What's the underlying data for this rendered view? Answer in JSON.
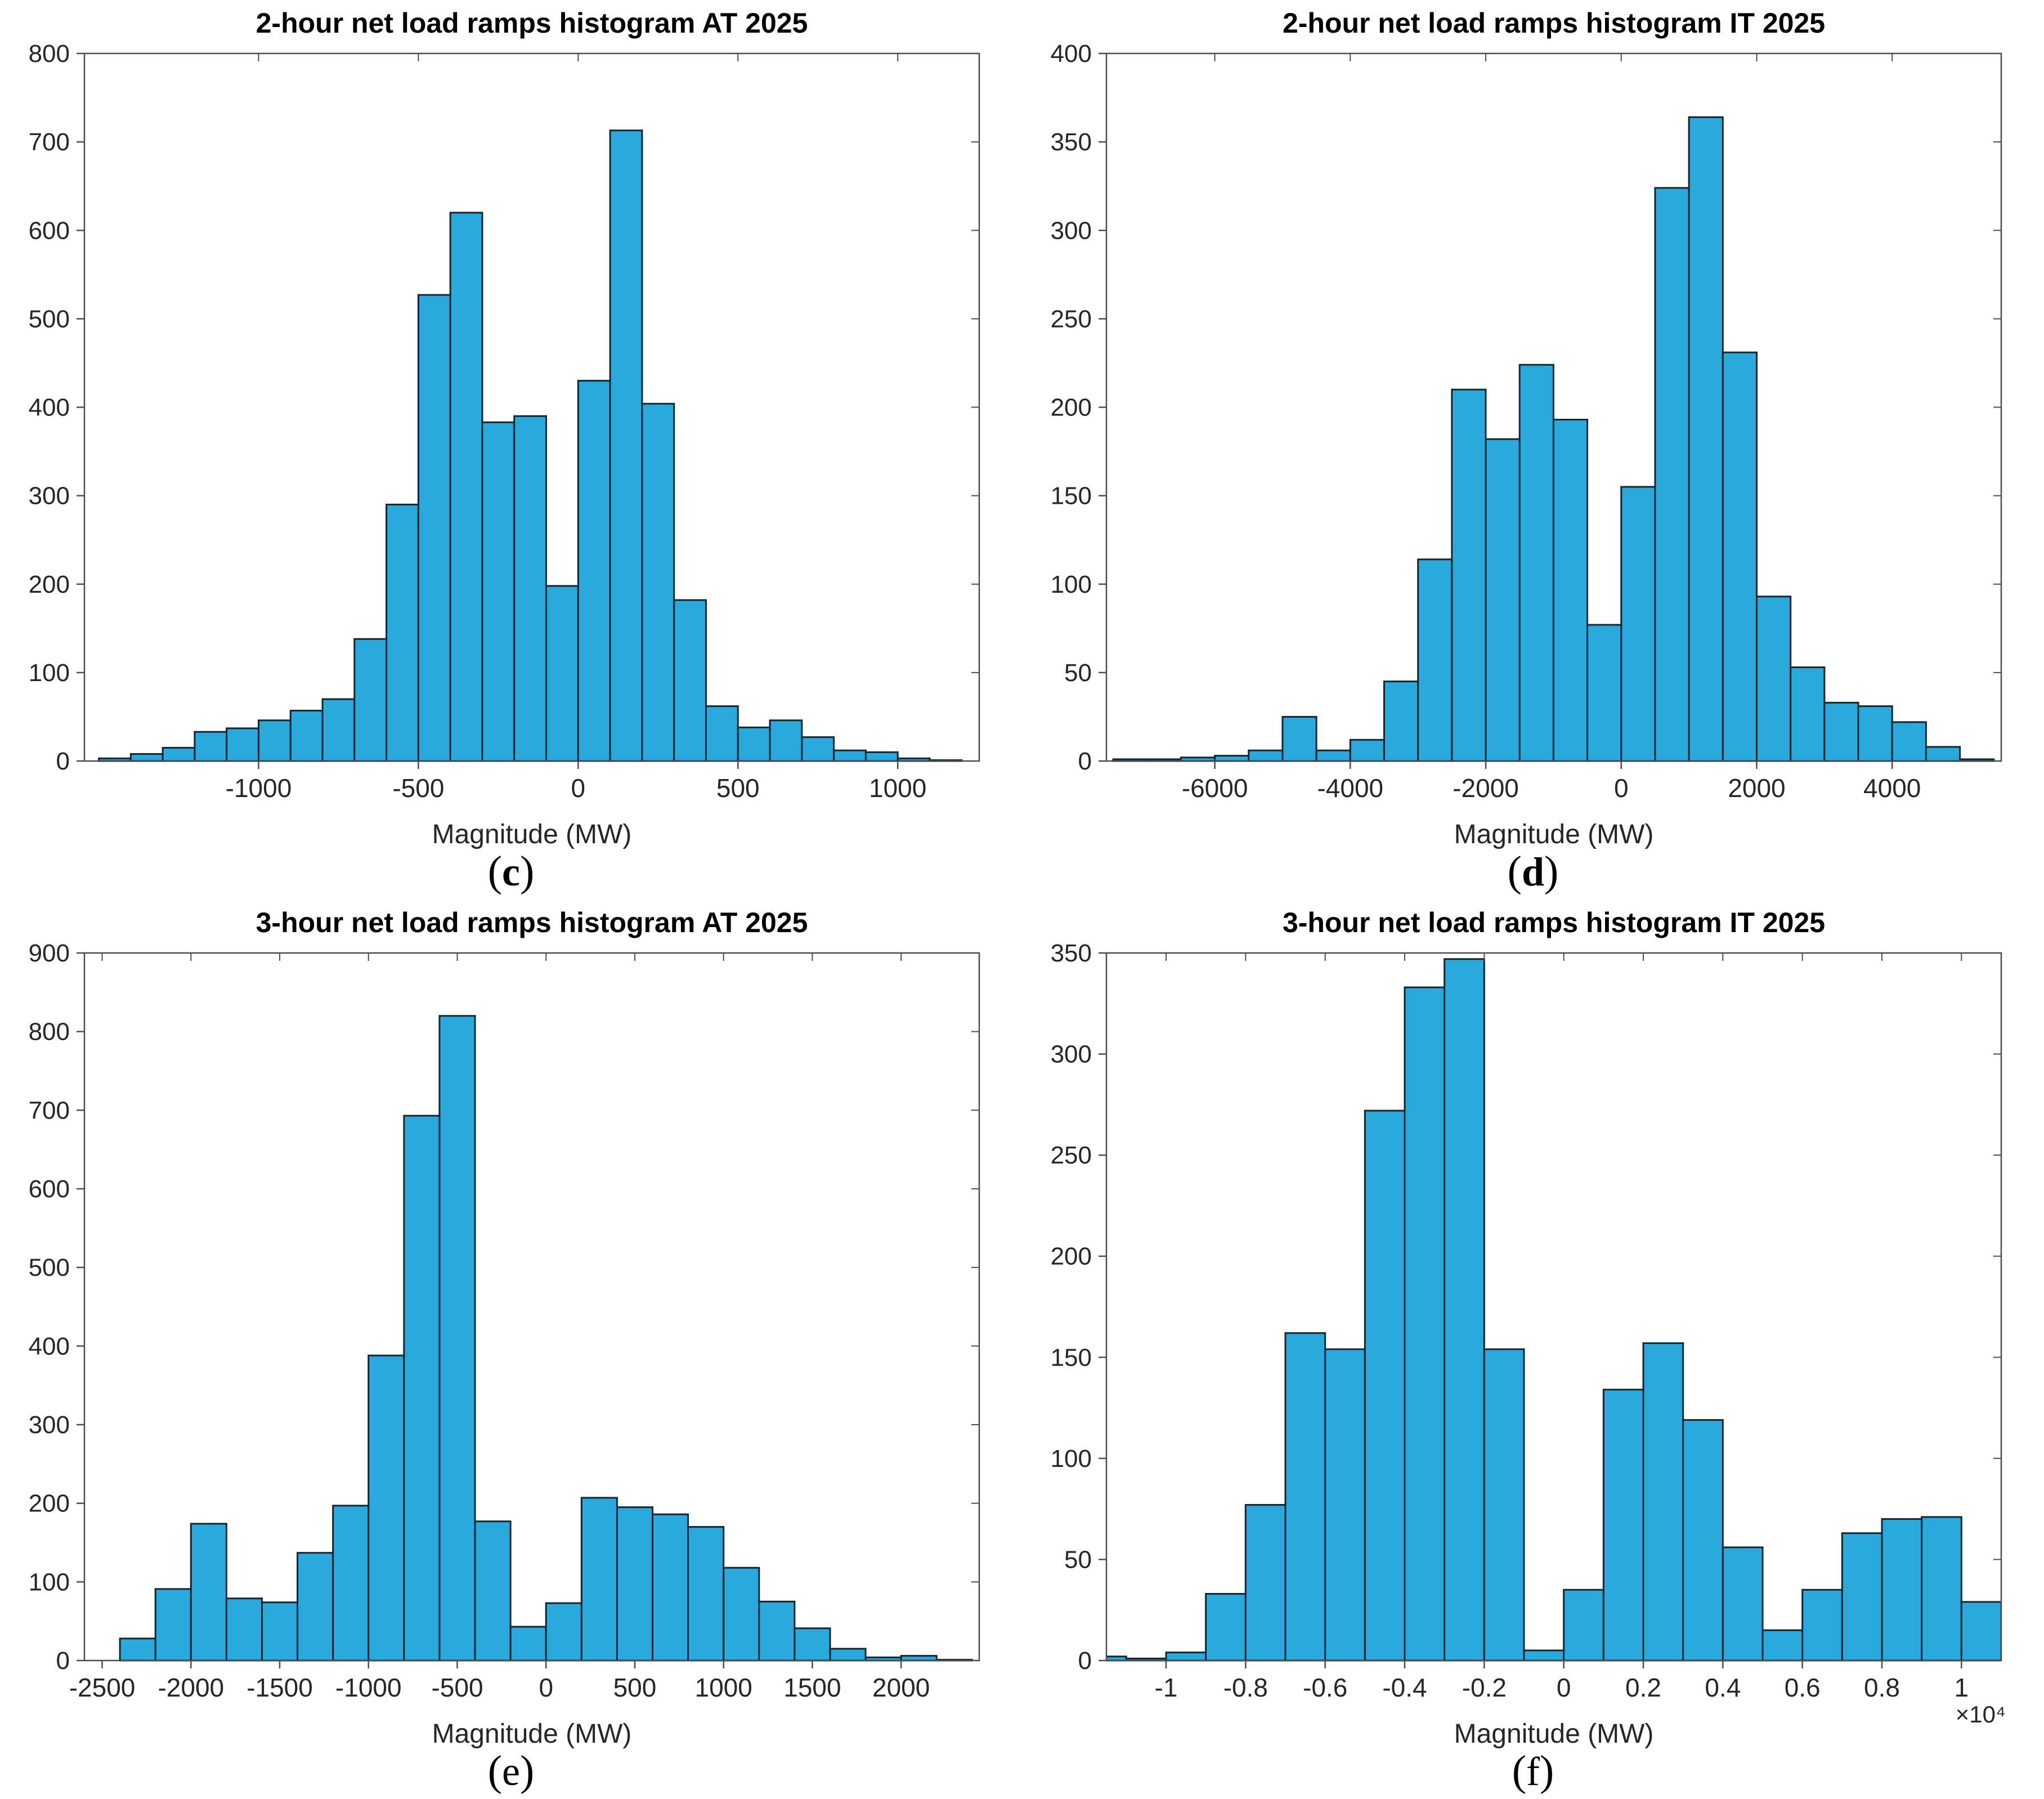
{
  "page": {
    "background": "#ffffff"
  },
  "style": {
    "bar_fill": "#29A9DC",
    "bar_edge": "#102632",
    "axis_color": "#4d4d4d",
    "tick_label_color": "#262626",
    "title_color": "#000000"
  },
  "figure_grid": {
    "panels": [
      {
        "id": "c",
        "caption_prefix": "(",
        "caption_letter": "c",
        "caption_suffix": ")"
      },
      {
        "id": "d",
        "caption_prefix": "(",
        "caption_letter": "d",
        "caption_suffix": ")"
      },
      {
        "id": "e",
        "caption_prefix": "(",
        "caption_letter": "e",
        "caption_suffix": ")"
      },
      {
        "id": "f",
        "caption_prefix": "(",
        "caption_letter": "f",
        "caption_suffix": ")"
      }
    ]
  },
  "chart_data": [
    {
      "type": "bar",
      "panel": "c",
      "title": "2-hour net load ramps histogram AT 2025",
      "xlabel": "Magnitude (MW)",
      "ylabel": "",
      "legend": null,
      "grid": false,
      "bin_start": -1500,
      "bin_width": 100,
      "values": [
        3,
        8,
        15,
        33,
        37,
        46,
        57,
        70,
        138,
        290,
        527,
        620,
        383,
        390,
        198,
        430,
        713,
        404,
        182,
        62,
        38,
        46,
        27,
        12,
        10,
        3,
        1
      ],
      "xlim": [
        -1545,
        1255
      ],
      "ylim": [
        0,
        800
      ],
      "ytick_step": 100,
      "yticks": [
        0,
        100,
        200,
        300,
        400,
        500,
        600,
        700,
        800
      ],
      "xticks": {
        "values": [
          -1000,
          -500,
          0,
          500,
          1000
        ],
        "labels": [
          "-1000",
          "-500",
          "0",
          "500",
          "1000"
        ]
      },
      "x_multiplier": null
    },
    {
      "type": "bar",
      "panel": "d",
      "title": "2-hour net load ramps histogram IT 2025",
      "xlabel": "Magnitude (MW)",
      "ylabel": "",
      "legend": null,
      "grid": false,
      "bin_start": -7500,
      "bin_width": 500,
      "values": [
        1,
        1,
        2,
        3,
        6,
        25,
        6,
        12,
        45,
        114,
        210,
        182,
        224,
        193,
        77,
        155,
        324,
        364,
        231,
        93,
        53,
        33,
        31,
        22,
        8,
        1
      ],
      "xlim": [
        -7600,
        5610
      ],
      "ylim": [
        0,
        400
      ],
      "ytick_step": 50,
      "yticks": [
        0,
        50,
        100,
        150,
        200,
        250,
        300,
        350,
        400
      ],
      "xticks": {
        "values": [
          -6000,
          -4000,
          -2000,
          0,
          2000,
          4000
        ],
        "labels": [
          "-6000",
          "-4000",
          "-2000",
          "0",
          "2000",
          "4000"
        ]
      },
      "x_multiplier": null
    },
    {
      "type": "bar",
      "panel": "e",
      "title": "3-hour net load ramps histogram AT 2025",
      "xlabel": "Magnitude (MW)",
      "ylabel": "",
      "legend": null,
      "grid": false,
      "bin_start": -2400,
      "bin_width": 200,
      "values": [
        28,
        91,
        174,
        79,
        74,
        137,
        197,
        388,
        693,
        820,
        177,
        43,
        73,
        207,
        195,
        186,
        170,
        118,
        75,
        41,
        15,
        4,
        6,
        1
      ],
      "xlim": [
        -2600,
        2440
      ],
      "ylim": [
        0,
        900
      ],
      "ytick_step": 100,
      "yticks": [
        0,
        100,
        200,
        300,
        400,
        500,
        600,
        700,
        800,
        900
      ],
      "xticks": {
        "values": [
          -2500,
          -2000,
          -1500,
          -1000,
          -500,
          0,
          500,
          1000,
          1500,
          2000
        ],
        "labels": [
          "-2500",
          "-2000",
          "-1500",
          "-1000",
          "-500",
          "0",
          "500",
          "1000",
          "1500",
          "2000"
        ]
      },
      "x_multiplier": null
    },
    {
      "type": "bar",
      "panel": "f",
      "title": "3-hour net load ramps histogram IT 2025",
      "xlabel": "Magnitude (MW)",
      "ylabel": "",
      "legend": null,
      "grid": false,
      "bin_start": -12000,
      "bin_width": 1000,
      "values": [
        2,
        1,
        4,
        33,
        77,
        162,
        154,
        272,
        333,
        347,
        154,
        5,
        35,
        134,
        157,
        119,
        56,
        15,
        35,
        63,
        70,
        71,
        29
      ],
      "xlim": [
        -11500,
        11000
      ],
      "ylim": [
        0,
        350
      ],
      "ytick_step": 50,
      "yticks": [
        0,
        50,
        100,
        150,
        200,
        250,
        300,
        350
      ],
      "xticks": {
        "values": [
          -10000,
          -8000,
          -6000,
          -4000,
          -2000,
          0,
          2000,
          4000,
          6000,
          8000,
          10000
        ],
        "labels": [
          "-1",
          "-0.8",
          "-0.6",
          "-0.4",
          "-0.2",
          "0",
          "0.2",
          "0.4",
          "0.6",
          "0.8",
          "1"
        ]
      },
      "x_multiplier": "×10⁴"
    }
  ]
}
